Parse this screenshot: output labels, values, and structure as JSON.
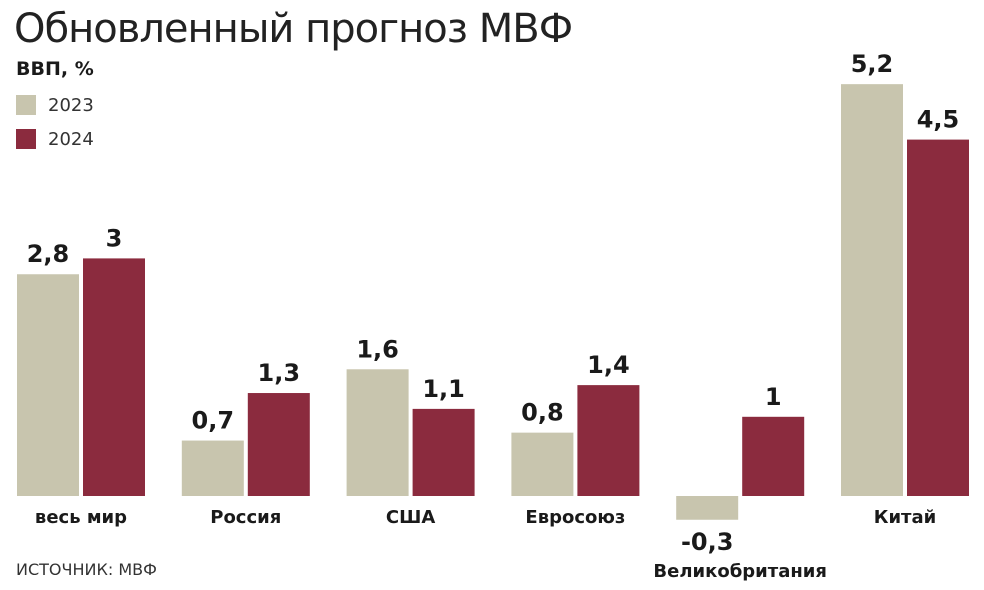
{
  "chart_data": {
    "type": "bar",
    "title": "Обновленный прогноз МВФ",
    "ylabel": "ВВП, %",
    "categories": [
      "весь мир",
      "Россия",
      "США",
      "Евросоюз",
      "Великобритания",
      "Китай"
    ],
    "series": [
      {
        "name": "2023",
        "color": "#c8c5ae",
        "values": [
          2.8,
          0.7,
          1.6,
          0.8,
          -0.3,
          5.2
        ],
        "labels": [
          "2,8",
          "0,7",
          "1,6",
          "0,8",
          "-0,3",
          "5,2"
        ]
      },
      {
        "name": "2024",
        "color": "#8b2b3e",
        "values": [
          3,
          1.3,
          1.1,
          1.4,
          1,
          4.5
        ],
        "labels": [
          "3",
          "1,3",
          "1,1",
          "1,4",
          "1",
          "4,5"
        ]
      }
    ],
    "ylim": [
      -0.3,
      5.2
    ],
    "grid": false,
    "legend_position": "top-left",
    "source": "ИСТОЧНИК: МВФ"
  }
}
